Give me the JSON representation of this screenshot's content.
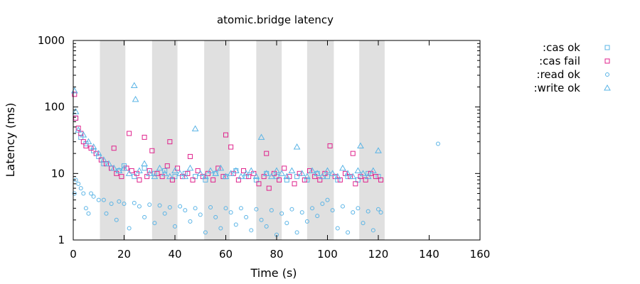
{
  "chart_data": {
    "type": "scatter",
    "title": "atomic.bridge latency",
    "xlabel": "Time (s)",
    "ylabel": "Latency (ms)",
    "xlim": [
      0,
      160
    ],
    "ylim": [
      1,
      1000
    ],
    "yscale": "log",
    "x_ticks": [
      "0",
      "20",
      "40",
      "60",
      "80",
      "100",
      "120",
      "140",
      "160"
    ],
    "y_ticks": [
      "1",
      "10",
      "100",
      "1000"
    ],
    "grid": false,
    "legend_position": "outside-right",
    "shaded_intervals": [
      [
        10.5,
        20.5
      ],
      [
        31,
        41
      ],
      [
        51.5,
        61.5
      ],
      [
        72,
        82
      ],
      [
        92,
        102.5
      ],
      [
        112.5,
        122.5
      ]
    ],
    "series": [
      {
        "name": ":cas ok",
        "marker": "square",
        "color": "#5ab4e6",
        "points": [
          [
            1,
            68
          ],
          [
            3,
            35
          ],
          [
            5,
            28
          ],
          [
            8,
            22
          ],
          [
            10,
            18
          ],
          [
            12,
            14
          ],
          [
            15,
            12
          ],
          [
            18,
            11
          ],
          [
            20,
            13
          ],
          [
            24,
            9
          ],
          [
            28,
            12
          ],
          [
            32,
            10
          ],
          [
            36,
            11
          ],
          [
            40,
            9
          ],
          [
            44,
            10
          ],
          [
            48,
            9
          ],
          [
            52,
            8
          ],
          [
            56,
            10
          ],
          [
            60,
            9
          ],
          [
            64,
            11
          ],
          [
            68,
            9
          ],
          [
            72,
            8
          ],
          [
            76,
            10
          ],
          [
            80,
            9
          ],
          [
            84,
            8
          ],
          [
            88,
            9
          ],
          [
            92,
            8
          ],
          [
            96,
            10
          ],
          [
            100,
            9
          ],
          [
            104,
            8
          ],
          [
            108,
            9
          ],
          [
            112,
            8
          ],
          [
            116,
            10
          ],
          [
            120,
            9
          ]
        ]
      },
      {
        "name": ":cas fail",
        "marker": "square",
        "color": "#e0228c",
        "points": [
          [
            0.5,
            155
          ],
          [
            1,
            68
          ],
          [
            2,
            48
          ],
          [
            3,
            40
          ],
          [
            4,
            30
          ],
          [
            5,
            26
          ],
          [
            7,
            24
          ],
          [
            9,
            20
          ],
          [
            11,
            16
          ],
          [
            13,
            14
          ],
          [
            15,
            12
          ],
          [
            16,
            24
          ],
          [
            17,
            10
          ],
          [
            19,
            9
          ],
          [
            21,
            12
          ],
          [
            22,
            40
          ],
          [
            23,
            11
          ],
          [
            25,
            10
          ],
          [
            26,
            8
          ],
          [
            28,
            35
          ],
          [
            29,
            9
          ],
          [
            30,
            11
          ],
          [
            31,
            22
          ],
          [
            33,
            10
          ],
          [
            35,
            9
          ],
          [
            37,
            13
          ],
          [
            38,
            30
          ],
          [
            39,
            8
          ],
          [
            41,
            12
          ],
          [
            43,
            9
          ],
          [
            45,
            10
          ],
          [
            46,
            18
          ],
          [
            47,
            8
          ],
          [
            49,
            11
          ],
          [
            51,
            9
          ],
          [
            53,
            10
          ],
          [
            55,
            8
          ],
          [
            57,
            12
          ],
          [
            59,
            9
          ],
          [
            60,
            38
          ],
          [
            62,
            25
          ],
          [
            63,
            10
          ],
          [
            65,
            8
          ],
          [
            67,
            11
          ],
          [
            69,
            9
          ],
          [
            71,
            10
          ],
          [
            73,
            7
          ],
          [
            75,
            9
          ],
          [
            76,
            20
          ],
          [
            77,
            6
          ],
          [
            79,
            10
          ],
          [
            81,
            8
          ],
          [
            83,
            12
          ],
          [
            85,
            9
          ],
          [
            87,
            7
          ],
          [
            89,
            10
          ],
          [
            91,
            8
          ],
          [
            93,
            11
          ],
          [
            95,
            9
          ],
          [
            97,
            8
          ],
          [
            99,
            10
          ],
          [
            101,
            26
          ],
          [
            103,
            9
          ],
          [
            105,
            8
          ],
          [
            107,
            10
          ],
          [
            109,
            9
          ],
          [
            110,
            20
          ],
          [
            111,
            7
          ],
          [
            113,
            9
          ],
          [
            115,
            8
          ],
          [
            117,
            10
          ],
          [
            119,
            9
          ],
          [
            121,
            8
          ]
        ]
      },
      {
        "name": ":read ok",
        "marker": "circle",
        "color": "#5ab4e6",
        "points": [
          [
            0.5,
            5
          ],
          [
            1,
            8
          ],
          [
            2,
            7
          ],
          [
            3,
            6
          ],
          [
            4,
            5
          ],
          [
            5,
            3
          ],
          [
            6,
            2.5
          ],
          [
            7,
            5
          ],
          [
            8,
            4.5
          ],
          [
            10,
            4
          ],
          [
            12,
            4
          ],
          [
            13,
            2.5
          ],
          [
            15,
            3.5
          ],
          [
            17,
            2
          ],
          [
            18,
            3.8
          ],
          [
            20,
            3.5
          ],
          [
            22,
            1.5
          ],
          [
            24,
            3.6
          ],
          [
            26,
            3.2
          ],
          [
            28,
            2.2
          ],
          [
            30,
            3.4
          ],
          [
            32,
            1.8
          ],
          [
            34,
            3.3
          ],
          [
            36,
            2.5
          ],
          [
            38,
            3.1
          ],
          [
            40,
            1.6
          ],
          [
            42,
            3.2
          ],
          [
            44,
            2.8
          ],
          [
            46,
            1.9
          ],
          [
            48,
            3.0
          ],
          [
            50,
            2.4
          ],
          [
            52,
            1.3
          ],
          [
            54,
            3.1
          ],
          [
            56,
            2.2
          ],
          [
            58,
            1.5
          ],
          [
            60,
            3.0
          ],
          [
            62,
            2.6
          ],
          [
            64,
            1.7
          ],
          [
            66,
            3.0
          ],
          [
            68,
            2.2
          ],
          [
            70,
            1.4
          ],
          [
            72,
            2.9
          ],
          [
            74,
            2.0
          ],
          [
            76,
            1.6
          ],
          [
            78,
            2.8
          ],
          [
            80,
            1.2
          ],
          [
            82,
            2.5
          ],
          [
            84,
            1.8
          ],
          [
            86,
            2.9
          ],
          [
            88,
            1.3
          ],
          [
            90,
            2.6
          ],
          [
            92,
            1.9
          ],
          [
            94,
            3.0
          ],
          [
            96,
            2.3
          ],
          [
            98,
            3.5
          ],
          [
            100,
            4.0
          ],
          [
            102,
            2.8
          ],
          [
            104,
            1.5
          ],
          [
            106,
            3.2
          ],
          [
            108,
            1.3
          ],
          [
            110,
            2.6
          ],
          [
            112,
            3.0
          ],
          [
            114,
            1.8
          ],
          [
            116,
            2.7
          ],
          [
            118,
            1.4
          ],
          [
            120,
            2.9
          ],
          [
            121,
            2.6
          ],
          [
            143.5,
            28
          ]
        ]
      },
      {
        "name": ":write ok",
        "marker": "triangle",
        "color": "#5ab4e6",
        "points": [
          [
            0.5,
            175
          ],
          [
            1,
            85
          ],
          [
            2,
            45
          ],
          [
            4,
            38
          ],
          [
            6,
            30
          ],
          [
            8,
            25
          ],
          [
            10,
            20
          ],
          [
            12,
            16
          ],
          [
            14,
            14
          ],
          [
            16,
            12
          ],
          [
            18,
            11
          ],
          [
            20,
            12
          ],
          [
            22,
            10
          ],
          [
            24,
            210
          ],
          [
            24.5,
            130
          ],
          [
            26,
            11
          ],
          [
            28,
            14
          ],
          [
            30,
            10
          ],
          [
            32,
            9
          ],
          [
            34,
            12
          ],
          [
            36,
            10
          ],
          [
            38,
            9
          ],
          [
            40,
            11
          ],
          [
            42,
            10
          ],
          [
            44,
            9
          ],
          [
            46,
            12
          ],
          [
            48,
            47
          ],
          [
            50,
            10
          ],
          [
            52,
            9
          ],
          [
            54,
            11
          ],
          [
            56,
            10
          ],
          [
            58,
            12
          ],
          [
            60,
            9
          ],
          [
            62,
            10
          ],
          [
            64,
            11
          ],
          [
            66,
            9
          ],
          [
            68,
            10
          ],
          [
            70,
            11
          ],
          [
            72,
            9
          ],
          [
            74,
            35
          ],
          [
            76,
            10
          ],
          [
            78,
            9
          ],
          [
            80,
            11
          ],
          [
            82,
            10
          ],
          [
            84,
            9
          ],
          [
            86,
            11
          ],
          [
            88,
            25
          ],
          [
            90,
            10
          ],
          [
            92,
            9
          ],
          [
            94,
            11
          ],
          [
            96,
            10
          ],
          [
            98,
            9
          ],
          [
            100,
            11
          ],
          [
            102,
            10
          ],
          [
            104,
            9
          ],
          [
            106,
            12
          ],
          [
            108,
            10
          ],
          [
            110,
            9
          ],
          [
            112,
            11
          ],
          [
            113,
            26
          ],
          [
            114,
            10
          ],
          [
            116,
            9
          ],
          [
            118,
            11
          ],
          [
            120,
            22
          ]
        ]
      }
    ]
  }
}
